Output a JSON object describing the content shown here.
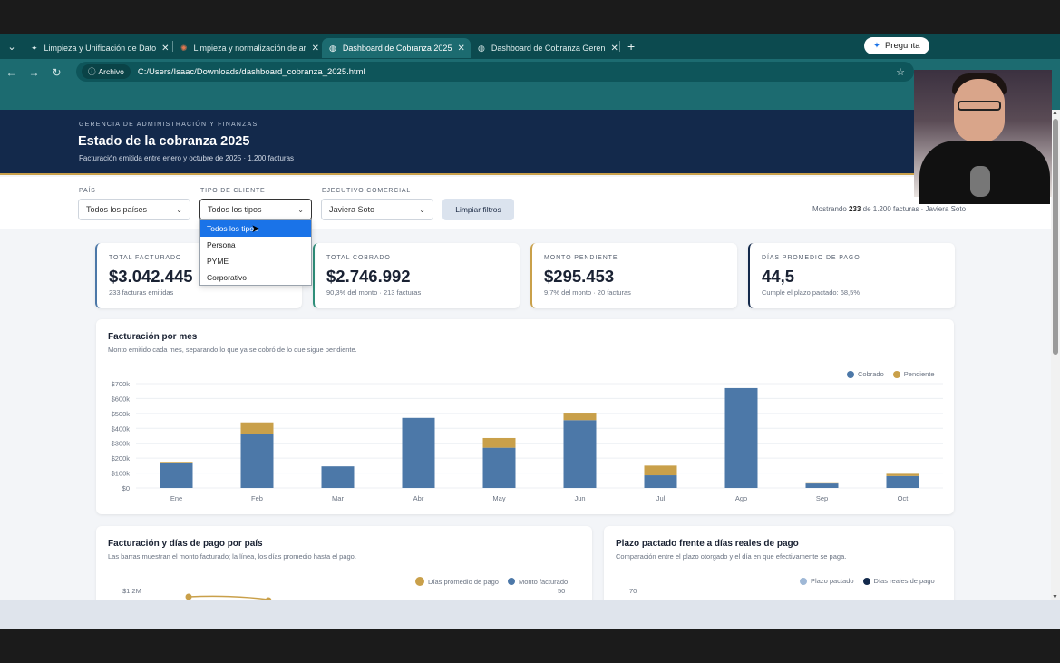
{
  "browser": {
    "tabs": [
      {
        "label": "Limpieza y Unificación de Dato",
        "icon": "sparkle-icon",
        "active": false
      },
      {
        "label": "Limpieza y normalización de ar",
        "icon": "claude-icon",
        "active": false
      },
      {
        "label": "Dashboard de Cobranza 2025",
        "icon": "globe-icon",
        "active": true
      },
      {
        "label": "Dashboard de Cobranza Geren",
        "icon": "globe-icon",
        "active": false
      }
    ],
    "ask_label": "Pregunta",
    "address_chip": "Archivo",
    "url": "C:/Users/Isaac/Downloads/dashboard_cobranza_2025.html"
  },
  "header": {
    "kicker": "GERENCIA DE ADMINISTRACIÓN Y FINANZAS",
    "title": "Estado de la cobranza 2025",
    "subtitle": "Facturación emitida entre enero y octubre de 2025 · 1.200 facturas"
  },
  "filters": {
    "pais": {
      "label": "PAÍS",
      "value": "Todos los países"
    },
    "tipo": {
      "label": "TIPO DE CLIENTE",
      "value": "Todos los tipos",
      "options": [
        "Todos los tipos",
        "Persona",
        "PYME",
        "Corporativo"
      ],
      "selected_index": 0
    },
    "ejecutivo": {
      "label": "EJECUTIVO COMERCIAL",
      "value": "Javiera Soto"
    },
    "clear_label": "Limpiar filtros",
    "showing_prefix": "Mostrando",
    "showing_count": "233",
    "showing_suffix": "de 1.200 facturas · Javiera Soto"
  },
  "kpis": [
    {
      "label": "TOTAL FACTURADO",
      "value": "$3.042.445",
      "sub": "233 facturas emitidas",
      "accent": "#4c78a8"
    },
    {
      "label": "TOTAL COBRADO",
      "value": "$2.746.992",
      "sub": "90,3% del monto · 213 facturas",
      "accent": "#2f8f7a"
    },
    {
      "label": "MONTO PENDIENTE",
      "value": "$295.453",
      "sub": "9,7% del monto · 20 facturas",
      "accent": "#c9a04a"
    },
    {
      "label": "DÍAS PROMEDIO DE PAGO",
      "value": "44,5",
      "sub": "Cumple el plazo pactado: 68,5%",
      "accent": "#13294b"
    }
  ],
  "chart_monthly": {
    "title": "Facturación por mes",
    "subtitle": "Monto emitido cada mes, separando lo que ya se cobró de lo que sigue pendiente.",
    "legend": [
      "Cobrado",
      "Pendiente"
    ],
    "colors": {
      "cobrado": "#4c78a8",
      "pendiente": "#c9a04a"
    }
  },
  "chart_data": {
    "type": "bar",
    "stacked": true,
    "categories": [
      "Ene",
      "Feb",
      "Mar",
      "Abr",
      "May",
      "Jun",
      "Jul",
      "Ago",
      "Sep",
      "Oct"
    ],
    "series": [
      {
        "name": "Cobrado",
        "values": [
          165000,
          365000,
          145000,
          470000,
          270000,
          455000,
          85000,
          670000,
          30000,
          80000
        ]
      },
      {
        "name": "Pendiente",
        "values": [
          10000,
          75000,
          0,
          0,
          65000,
          50000,
          65000,
          0,
          8000,
          15000
        ]
      }
    ],
    "ylim": [
      0,
      700000
    ],
    "yticks": [
      "$0",
      "$100k",
      "$200k",
      "$300k",
      "$400k",
      "$500k",
      "$600k",
      "$700k"
    ],
    "legend_position": "top-right",
    "grid": true
  },
  "chart_country": {
    "title": "Facturación y días de pago por país",
    "subtitle": "Las barras muestran el monto facturado; la línea, los días promedio hasta el pago.",
    "legend": [
      "Días promedio de pago",
      "Monto facturado"
    ],
    "y_left_top": "$1,2M",
    "y_right_top": "50"
  },
  "chart_terms": {
    "title": "Plazo pactado frente a días reales de pago",
    "subtitle": "Comparación entre el plazo otorgado y el día en que efectivamente se paga.",
    "legend": [
      "Plazo pactado",
      "Días reales de pago"
    ],
    "y_top": "70"
  }
}
